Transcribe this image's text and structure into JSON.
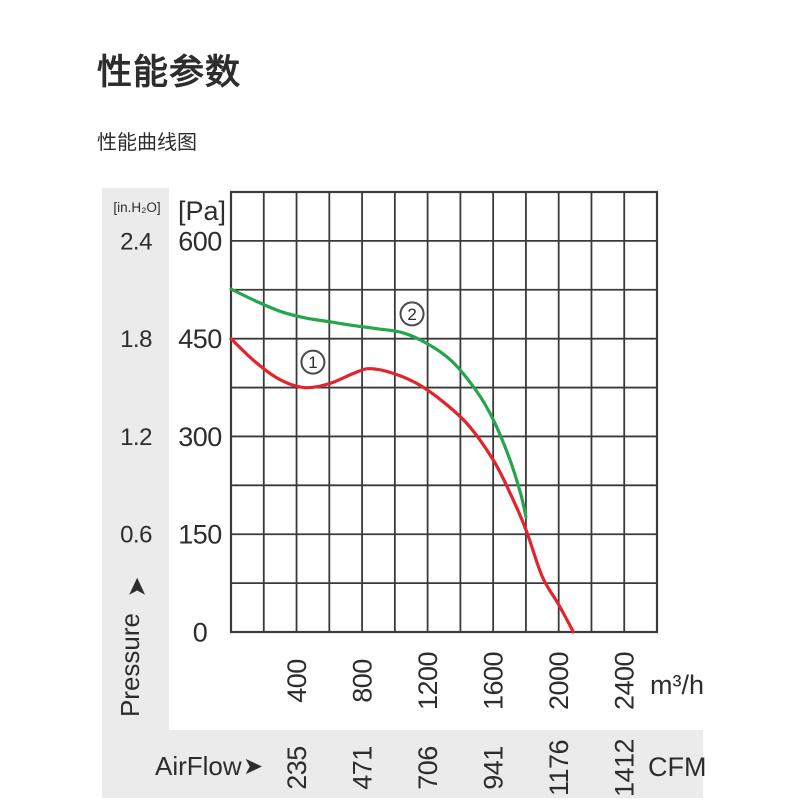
{
  "page": {
    "title": "性能参数",
    "subtitle": "性能曲线图"
  },
  "colors": {
    "curve1": "#e2242d",
    "curve2": "#25a54d",
    "grid": "#3a3a3a",
    "strip": "#ebebeb",
    "text": "#2d2d2d",
    "marker_stroke": "#4a4a4a"
  },
  "icons": {
    "up_arrow": "➤",
    "right_arrow": "➤"
  },
  "chart_data": {
    "type": "line",
    "title": "性能曲线图",
    "y_axis_name": "Pressure",
    "x_axis_name": "AirFlow",
    "y_unit_primary": "[Pa]",
    "y_unit_secondary": "[in.H₂O]",
    "x_unit_primary": "m³/h",
    "x_unit_secondary": "CFM",
    "xlim": [
      0,
      2600
    ],
    "ylim": [
      0,
      675
    ],
    "grid_step_x": 200,
    "grid_step_y": 75,
    "grid": true,
    "y_ticks_pa": [
      600,
      450,
      300,
      150,
      0
    ],
    "y_ticks_inh2o": [
      {
        "label": "2.4",
        "pa": 600
      },
      {
        "label": "1.8",
        "pa": 450
      },
      {
        "label": "1.2",
        "pa": 300
      },
      {
        "label": "0.6",
        "pa": 150
      }
    ],
    "x_ticks": [
      {
        "m3h": 400,
        "cfm": 235
      },
      {
        "m3h": 800,
        "cfm": 471
      },
      {
        "m3h": 1200,
        "cfm": 706
      },
      {
        "m3h": 1600,
        "cfm": 941
      },
      {
        "m3h": 2000,
        "cfm": 1176
      },
      {
        "m3h": 2400,
        "cfm": 1412
      }
    ],
    "series": [
      {
        "name": "1",
        "color_key": "curve1",
        "label_pos": {
          "m3h": 500,
          "pa": 414
        },
        "points": [
          [
            0,
            450
          ],
          [
            150,
            414
          ],
          [
            300,
            387
          ],
          [
            450,
            375
          ],
          [
            600,
            381
          ],
          [
            750,
            397
          ],
          [
            850,
            404
          ],
          [
            1000,
            396
          ],
          [
            1150,
            379
          ],
          [
            1300,
            352
          ],
          [
            1450,
            317
          ],
          [
            1600,
            264
          ],
          [
            1700,
            215
          ],
          [
            1800,
            157
          ],
          [
            1900,
            85
          ],
          [
            2000,
            42
          ],
          [
            2090,
            0
          ]
        ]
      },
      {
        "name": "2",
        "color_key": "curve2",
        "label_pos": {
          "m3h": 1105,
          "pa": 488
        },
        "points": [
          [
            0,
            526
          ],
          [
            150,
            508
          ],
          [
            300,
            492
          ],
          [
            450,
            482
          ],
          [
            600,
            476
          ],
          [
            750,
            470
          ],
          [
            900,
            465
          ],
          [
            1050,
            459
          ],
          [
            1200,
            442
          ],
          [
            1350,
            415
          ],
          [
            1500,
            369
          ],
          [
            1600,
            326
          ],
          [
            1700,
            266
          ],
          [
            1770,
            210
          ],
          [
            1800,
            177
          ]
        ]
      }
    ]
  }
}
